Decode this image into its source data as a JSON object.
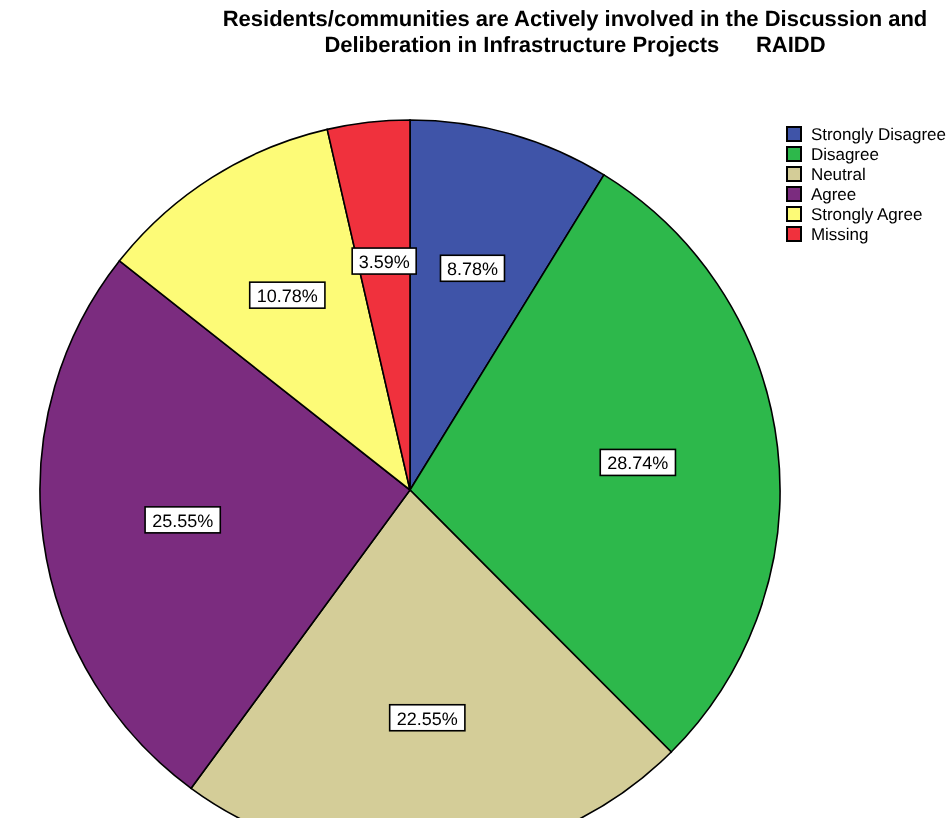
{
  "chart_data": {
    "type": "pie",
    "title": "Residents/communities are Actively involved in the Discussion and Deliberation in Infrastructure Projects      RAIDD",
    "categories": [
      "Strongly Disagree",
      "Disagree",
      "Neutral",
      "Agree",
      "Strongly Agree",
      "Missing"
    ],
    "values": [
      8.78,
      28.74,
      22.55,
      25.55,
      10.78,
      3.59
    ],
    "value_labels": [
      "8.78%",
      "28.74%",
      "22.55%",
      "25.55%",
      "10.78%",
      "3.59%"
    ],
    "colors": [
      "#3f54a8",
      "#2db84b",
      "#d4cd98",
      "#7b2c7f",
      "#fdfb77",
      "#f0313d"
    ],
    "legend": "top right"
  }
}
